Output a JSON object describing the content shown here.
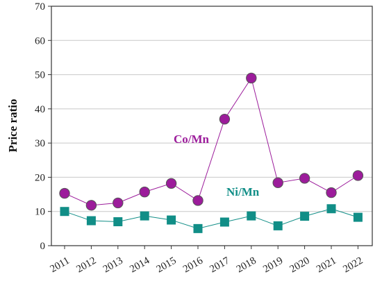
{
  "chart_data": {
    "type": "line",
    "title": "",
    "xlabel": "",
    "ylabel": "Price ratio",
    "ylim": [
      0,
      70
    ],
    "yticks": [
      0,
      10,
      20,
      30,
      40,
      50,
      60,
      70
    ],
    "grid": true,
    "legend": "none",
    "categories": [
      "2011",
      "2012",
      "2013",
      "2014",
      "2015",
      "2016",
      "2017",
      "2018",
      "2019",
      "2020",
      "2021",
      "2022"
    ],
    "series": [
      {
        "name": "Co/Mn",
        "marker": "circle",
        "color": "#9C1C9B",
        "values": [
          15.3,
          11.8,
          12.5,
          15.7,
          18.2,
          13.2,
          37.0,
          49.0,
          18.4,
          19.7,
          15.5,
          20.5
        ]
      },
      {
        "name": "Ni/Mn",
        "marker": "square",
        "color": "#118E87",
        "values": [
          10.0,
          7.3,
          7.0,
          8.7,
          7.5,
          5.0,
          6.9,
          8.7,
          5.8,
          8.6,
          10.8,
          8.3
        ]
      }
    ]
  }
}
